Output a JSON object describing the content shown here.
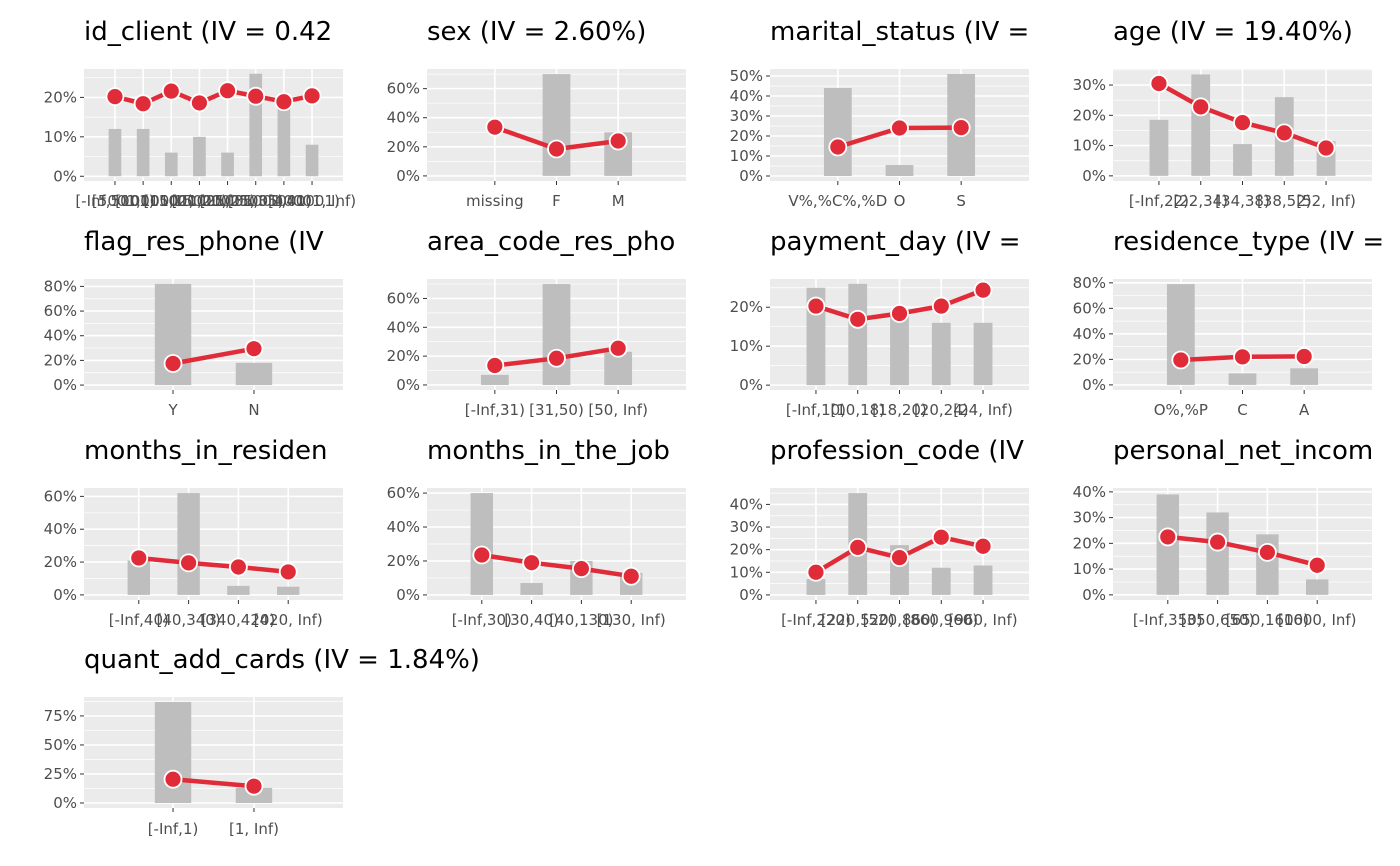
{
  "colors": {
    "panel_background": "#EBEBEB",
    "grid_major": "#FFFFFF",
    "bar_fill": "#BEBEBE",
    "line": "#E02C38",
    "point_fill": "#E02C38",
    "point_stroke": "#FFFFFF",
    "tick_text": "#4D4D4D",
    "title_text": "#000000"
  },
  "chart_data": [
    {
      "type": "bar+line",
      "title": "id_client (IV = 0.42",
      "categories": [
        "[-Inf,5001)",
        "[5001,10001)",
        "[10001,15001)",
        "[15001,20001)",
        "[20001,25001)",
        "[25001,35001)",
        "[35001,40001)",
        "[40001, Inf)"
      ],
      "category_labels": [
        "[-Inf,5001)",
        "[5001,10001)",
        "[10001,15001)",
        "[15001,20001)",
        "[20001,25001)",
        "[25001,35001)",
        "[35001,40001)",
        "[40001, Inf)"
      ],
      "series": [
        {
          "kind": "bar",
          "values": [
            12,
            12,
            6,
            10,
            6,
            26,
            18,
            8
          ]
        },
        {
          "kind": "line",
          "values": [
            20.2,
            18.4,
            21.6,
            18.6,
            21.7,
            20.3,
            18.9,
            20.4
          ]
        }
      ],
      "yticks": [
        0,
        10,
        20
      ],
      "ytick_labels": [
        "0%",
        "10%",
        "20%"
      ],
      "ylim": [
        -1.2,
        27.2
      ]
    },
    {
      "type": "bar+line",
      "title": "sex (IV = 2.60%)",
      "categories": [
        "missing",
        "F",
        "M"
      ],
      "category_labels": [
        "missing",
        "F",
        "M"
      ],
      "series": [
        {
          "kind": "bar",
          "values": [
            0,
            70,
            30
          ]
        },
        {
          "kind": "line",
          "values": [
            33.5,
            18.5,
            24
          ]
        }
      ],
      "yticks": [
        0,
        20,
        40,
        60
      ],
      "ytick_labels": [
        "0%",
        "20%",
        "40%",
        "60%"
      ],
      "ylim": [
        -3.5,
        73.5
      ]
    },
    {
      "type": "bar+line",
      "title": "marital_status (IV =",
      "categories": [
        "V%,%C%,%D",
        "O",
        "S"
      ],
      "category_labels": [
        "V%,%C%,%D",
        "O",
        "S"
      ],
      "series": [
        {
          "kind": "bar",
          "values": [
            44,
            5.5,
            51
          ]
        },
        {
          "kind": "line",
          "values": [
            14.5,
            24,
            24.2
          ]
        }
      ],
      "yticks": [
        0,
        10,
        20,
        30,
        40,
        50
      ],
      "ytick_labels": [
        "0%",
        "10%",
        "20%",
        "30%",
        "40%",
        "50%"
      ],
      "ylim": [
        -2.5,
        53.5
      ]
    },
    {
      "type": "bar+line",
      "title": "age (IV = 19.40%)",
      "categories": [
        "[-Inf,22)",
        "[22,34)",
        "[34,38)",
        "[38,52)",
        "[52, Inf)"
      ],
      "category_labels": [
        "[-Inf,22)",
        "[22,34)",
        "[34,38)",
        "[38,52)",
        "[52, Inf)"
      ],
      "series": [
        {
          "kind": "bar",
          "values": [
            18.5,
            33.5,
            10.5,
            26,
            11.5
          ]
        },
        {
          "kind": "line",
          "values": [
            30.5,
            22.8,
            17.6,
            14.2,
            9.2
          ]
        }
      ],
      "yticks": [
        0,
        10,
        20,
        30
      ],
      "ytick_labels": [
        "0%",
        "10%",
        "20%",
        "30%"
      ],
      "ylim": [
        -1.7,
        35.3
      ]
    },
    {
      "type": "bar+line",
      "title": "flag_res_phone (IV",
      "categories": [
        "Y",
        "N"
      ],
      "category_labels": [
        "Y",
        "N"
      ],
      "series": [
        {
          "kind": "bar",
          "values": [
            82,
            18
          ]
        },
        {
          "kind": "line",
          "values": [
            17.5,
            29.5
          ]
        }
      ],
      "yticks": [
        0,
        20,
        40,
        60,
        80
      ],
      "ytick_labels": [
        "0%",
        "20%",
        "40%",
        "60%",
        "80%"
      ],
      "ylim": [
        -4,
        86
      ]
    },
    {
      "type": "bar+line",
      "title": "area_code_res_pho",
      "categories": [
        "[-Inf,31)",
        "[31,50)",
        "[50, Inf)"
      ],
      "category_labels": [
        "[-Inf,31)",
        "[31,50)",
        "[50, Inf)"
      ],
      "series": [
        {
          "kind": "bar",
          "values": [
            7,
            70,
            23
          ]
        },
        {
          "kind": "line",
          "values": [
            13.5,
            18.5,
            25.5
          ]
        }
      ],
      "yticks": [
        0,
        20,
        40,
        60
      ],
      "ytick_labels": [
        "0%",
        "20%",
        "40%",
        "60%"
      ],
      "ylim": [
        -3.5,
        73.5
      ]
    },
    {
      "type": "bar+line",
      "title": "payment_day (IV =",
      "categories": [
        "[-Inf,10)",
        "[10,18)",
        "[18,20)",
        "[20,24)",
        "[24, Inf)"
      ],
      "category_labels": [
        "[-Inf,10)",
        "[10,18)",
        "[18,20)",
        "[20,24)",
        "[24, Inf)"
      ],
      "series": [
        {
          "kind": "bar",
          "values": [
            25,
            26,
            18,
            16,
            16
          ]
        },
        {
          "kind": "line",
          "values": [
            20.3,
            16.9,
            18.4,
            20.3,
            24.4
          ]
        }
      ],
      "yticks": [
        0,
        10,
        20
      ],
      "ytick_labels": [
        "0%",
        "10%",
        "20%"
      ],
      "ylim": [
        -1.25,
        27.25
      ]
    },
    {
      "type": "bar+line",
      "title": "residence_type (IV =",
      "categories": [
        "O%,%P",
        "C",
        "A"
      ],
      "category_labels": [
        "O%,%P",
        "C",
        "A"
      ],
      "series": [
        {
          "kind": "bar",
          "values": [
            79,
            9,
            13
          ]
        },
        {
          "kind": "line",
          "values": [
            19.5,
            22,
            22.3
          ]
        }
      ],
      "yticks": [
        0,
        20,
        40,
        60,
        80
      ],
      "ytick_labels": [
        "0%",
        "20%",
        "40%",
        "60%",
        "80%"
      ],
      "ylim": [
        -4,
        83
      ]
    },
    {
      "type": "bar+line",
      "title": "months_in_residen",
      "categories": [
        "[-Inf,40)",
        "[40,340)",
        "[340,420)",
        "[420, Inf)"
      ],
      "category_labels": [
        "[-Inf,40)",
        "[40,340)",
        "[340,420)",
        "[420, Inf)"
      ],
      "series": [
        {
          "kind": "bar",
          "values": [
            21,
            62,
            5.5,
            5
          ]
        },
        {
          "kind": "line",
          "values": [
            22.5,
            19.5,
            17,
            14
          ]
        }
      ],
      "yticks": [
        0,
        20,
        40,
        60
      ],
      "ytick_labels": [
        "0%",
        "20%",
        "40%",
        "60%"
      ],
      "ylim": [
        -3.1,
        65.1
      ]
    },
    {
      "type": "bar+line",
      "title": "months_in_the_job",
      "categories": [
        "[-Inf,30)",
        "[30,40)",
        "[40,130)",
        "[130, Inf)"
      ],
      "category_labels": [
        "[-Inf,30)",
        "[30,40)",
        "[40,130)",
        "[130, Inf)"
      ],
      "series": [
        {
          "kind": "bar",
          "values": [
            60,
            7,
            20,
            13
          ]
        },
        {
          "kind": "line",
          "values": [
            23.5,
            19,
            15.5,
            11
          ]
        }
      ],
      "yticks": [
        0,
        20,
        40,
        60
      ],
      "ytick_labels": [
        "0%",
        "20%",
        "40%",
        "60%"
      ],
      "ylim": [
        -3,
        63
      ]
    },
    {
      "type": "bar+line",
      "title": "profession_code (IV",
      "categories": [
        "[-Inf,220)",
        "[220,520)",
        "[520,860)",
        "[860,960)",
        "[960, Inf)"
      ],
      "category_labels": [
        "[-Inf,220)",
        "[220,520)",
        "[520,860)",
        "[860,960)",
        "[960, Inf)"
      ],
      "series": [
        {
          "kind": "bar",
          "values": [
            7,
            45,
            22,
            12,
            13
          ]
        },
        {
          "kind": "line",
          "values": [
            10,
            21,
            16.5,
            25.5,
            21.5
          ]
        }
      ],
      "yticks": [
        0,
        10,
        20,
        30,
        40
      ],
      "ytick_labels": [
        "0%",
        "10%",
        "20%",
        "30%",
        "40%"
      ],
      "ylim": [
        -2.25,
        47.25
      ]
    },
    {
      "type": "bar+line",
      "title": "personal_net_incom",
      "categories": [
        "[-Inf,350)",
        "[350,650)",
        "[650,1600)",
        "[1600, Inf)"
      ],
      "category_labels": [
        "[-Inf,350)",
        "[350,650)",
        "[650,1600)",
        "[1600, Inf)"
      ],
      "series": [
        {
          "kind": "bar",
          "values": [
            39,
            32,
            23.5,
            6
          ]
        },
        {
          "kind": "line",
          "values": [
            22.5,
            20.5,
            16.5,
            11.5
          ]
        }
      ],
      "yticks": [
        0,
        10,
        20,
        30,
        40
      ],
      "ytick_labels": [
        "0%",
        "10%",
        "20%",
        "30%",
        "40%"
      ],
      "ylim": [
        -2,
        41.5
      ]
    },
    {
      "type": "bar+line",
      "title": "quant_add_cards (IV = 1.84%)",
      "categories": [
        "[-Inf,1)",
        "[1, Inf)"
      ],
      "category_labels": [
        "[-Inf,1)",
        "[1, Inf)"
      ],
      "series": [
        {
          "kind": "bar",
          "values": [
            87,
            13
          ]
        },
        {
          "kind": "line",
          "values": [
            20.5,
            14.5
          ]
        }
      ],
      "yticks": [
        0,
        25,
        50,
        75
      ],
      "ytick_labels": [
        "0%",
        "25%",
        "50%",
        "75%"
      ],
      "ylim": [
        -4.3,
        91.3
      ]
    }
  ]
}
